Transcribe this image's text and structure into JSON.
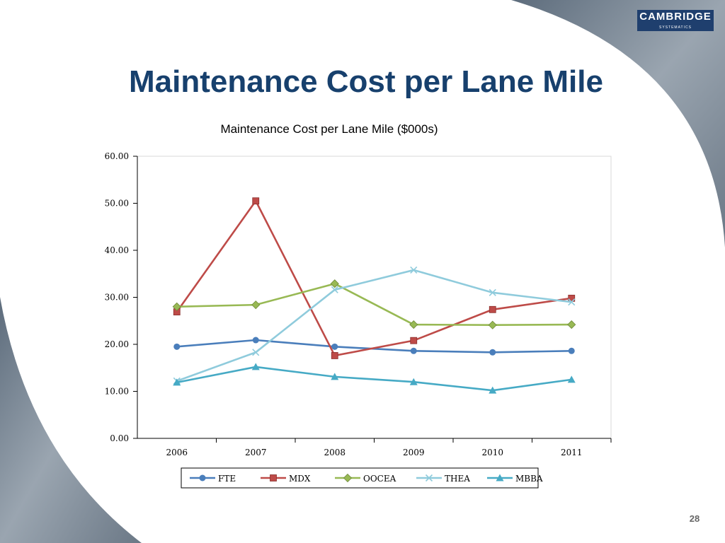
{
  "slide": {
    "title": "Maintenance Cost per Lane Mile",
    "logo_name": "CAMBRIDGE",
    "logo_sub": "SYSTEMATICS",
    "page_number": "28"
  },
  "chart_data": {
    "type": "line",
    "title": "Maintenance Cost per Lane Mile ($000s)",
    "categories": [
      "2006",
      "2007",
      "2008",
      "2009",
      "2010",
      "2011"
    ],
    "series": [
      {
        "name": "FTE",
        "color": "#4a7ebb",
        "marker": "circle",
        "values": [
          19.5,
          20.9,
          19.5,
          18.6,
          18.3,
          18.6
        ]
      },
      {
        "name": "MDX",
        "color": "#be4b48",
        "marker": "square",
        "values": [
          26.9,
          50.5,
          17.6,
          20.8,
          27.4,
          29.8
        ]
      },
      {
        "name": "OOCEA",
        "color": "#98b954",
        "marker": "diamond",
        "values": [
          28.0,
          28.4,
          32.9,
          24.2,
          24.1,
          24.2
        ]
      },
      {
        "name": "THEA",
        "color": "#8fcbdc",
        "marker": "x",
        "values": [
          12.2,
          18.3,
          31.6,
          35.8,
          31.0,
          29.0
        ]
      },
      {
        "name": "MBBA",
        "color": "#46aac5",
        "marker": "triangle",
        "values": [
          11.9,
          15.2,
          13.1,
          12.0,
          10.2,
          12.5
        ]
      }
    ],
    "ylim": [
      0,
      60
    ],
    "yticks": [
      {
        "value": 0,
        "label": "0.00"
      },
      {
        "value": 10,
        "label": "10.00"
      },
      {
        "value": 20,
        "label": "20.00"
      },
      {
        "value": 30,
        "label": "30.00"
      },
      {
        "value": 40,
        "label": "40.00"
      },
      {
        "value": 50,
        "label": "50.00"
      },
      {
        "value": 60,
        "label": "60.00"
      }
    ],
    "grid": false,
    "legend": "bottom"
  }
}
